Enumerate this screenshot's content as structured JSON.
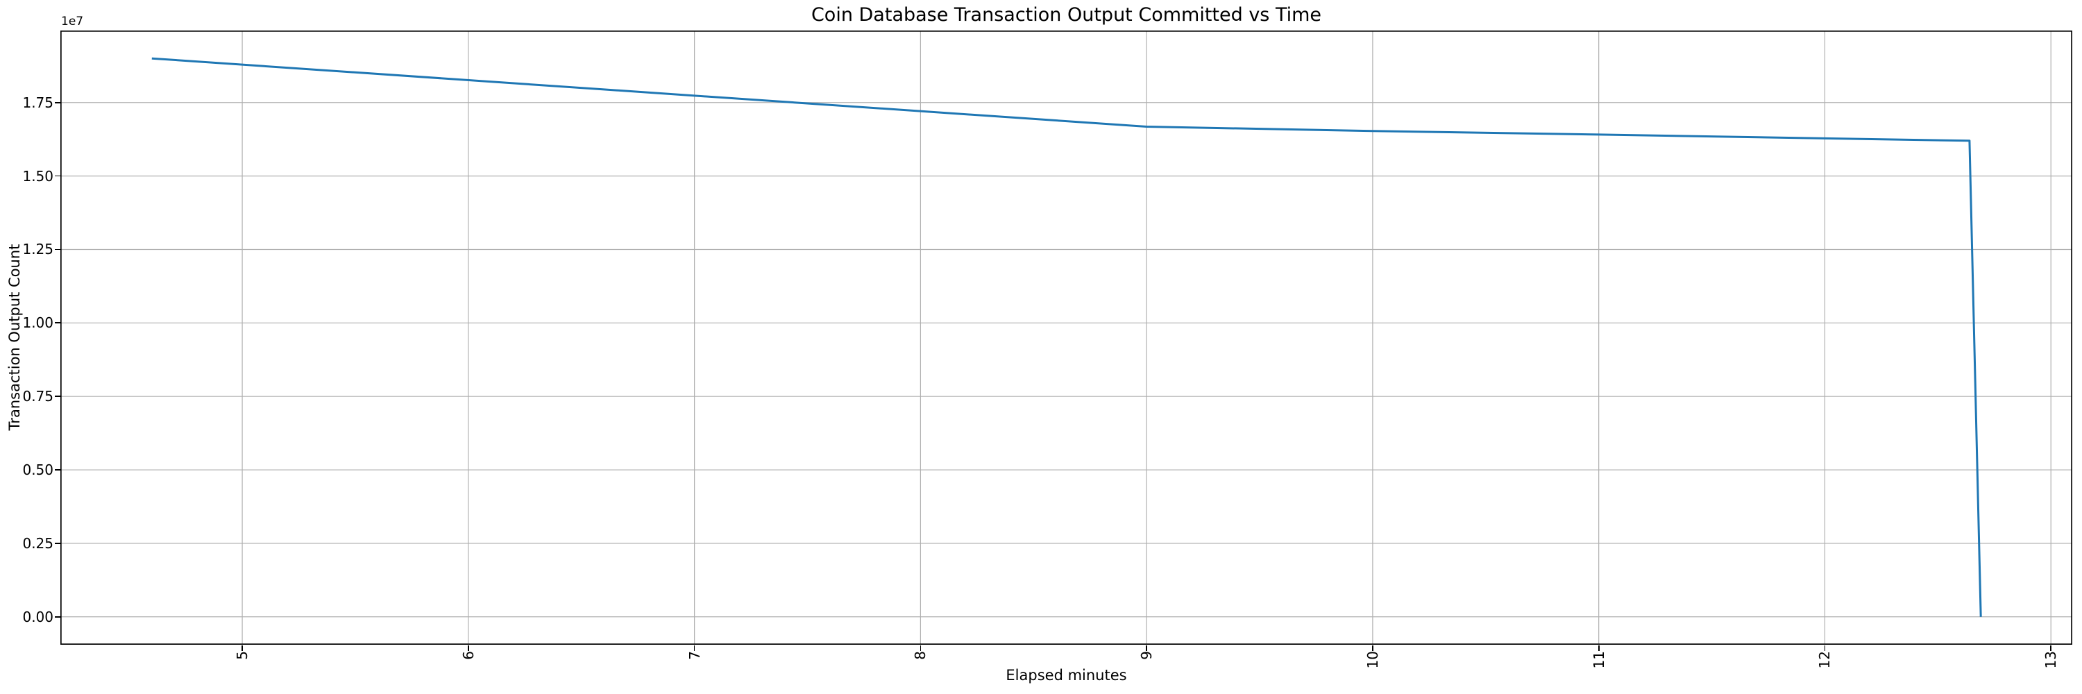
{
  "chart_data": {
    "type": "line",
    "title": "Coin Database Transaction Output Committed vs Time",
    "xlabel": "Elapsed minutes",
    "ylabel": "Transaction Output Count",
    "y_offset_label": "1e7",
    "xlim": [
      4.1955,
      13.0945
    ],
    "ylim": [
      -950000,
      19950000
    ],
    "xticks": [
      5,
      6,
      7,
      8,
      9,
      10,
      11,
      12,
      13
    ],
    "xtick_labels": [
      "5",
      "6",
      "7",
      "8",
      "9",
      "10",
      "11",
      "12",
      "13"
    ],
    "yticks": [
      0,
      2500000,
      5000000,
      7500000,
      10000000,
      12500000,
      15000000,
      17500000
    ],
    "ytick_labels": [
      "0.00",
      "0.25",
      "0.50",
      "0.75",
      "1.00",
      "1.25",
      "1.50",
      "1.75"
    ],
    "grid": true,
    "legend_position": "none",
    "line_color": "#1f77b4",
    "grid_color": "#b0b0b0",
    "spine_color": "#000000",
    "series": [
      {
        "name": "Transaction Output Count",
        "x": [
          4.6,
          9.0,
          10.0,
          11.0,
          12.0,
          12.64,
          12.69
        ],
        "y": [
          19000000,
          16680000,
          16530000,
          16410000,
          16280000,
          16200000,
          0
        ]
      }
    ]
  }
}
